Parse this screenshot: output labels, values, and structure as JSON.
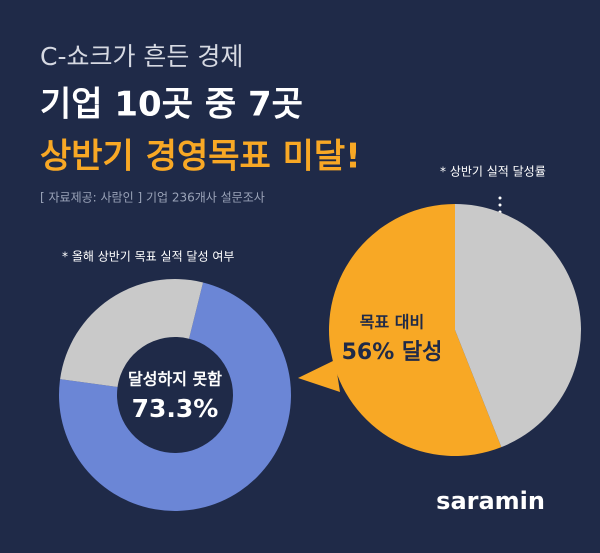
{
  "header": {
    "kicker": "C-쇼크가 흔든 경제",
    "title": "기업 10곳 중 7곳",
    "highlight": "상반기 경영목표 미달!",
    "source": "[ 자료제공: 사람인 ] 기업 236개사 설문조사"
  },
  "chart_data": [
    {
      "type": "donut",
      "subtitle": "* 올해 상반기 목표 실적 달성 여부",
      "categories": [
        "달성하지 못함",
        null
      ],
      "values": [
        73.3,
        26.7
      ],
      "value_labels": [
        "73.3%",
        null
      ],
      "colors": [
        "#6b86d6",
        "#c9c9c9"
      ]
    },
    {
      "type": "pie",
      "subtitle": "* 상반기 실적 달성률",
      "categories": [
        "목표 대비",
        null
      ],
      "values": [
        56,
        44
      ],
      "value_labels": [
        "56% 달성",
        null
      ],
      "colors": [
        "#f8a825",
        "#c9c9c9"
      ]
    }
  ],
  "logo": "saramin"
}
